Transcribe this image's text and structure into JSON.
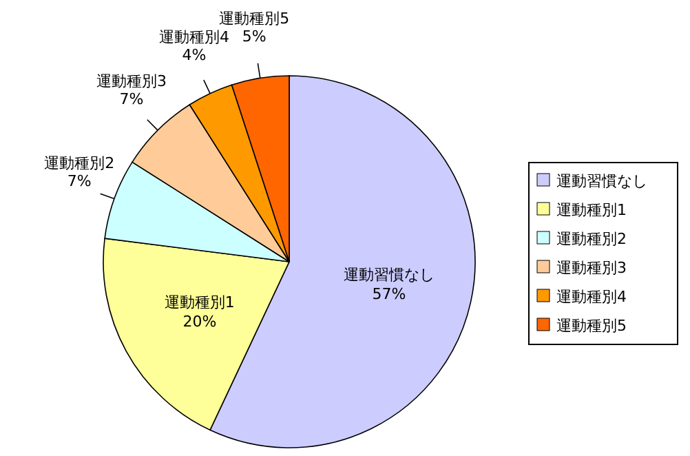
{
  "chart_data": {
    "type": "pie",
    "categories": [
      "運動習慣なし",
      "運動種別1",
      "運動種別2",
      "運動種別3",
      "運動種別4",
      "運動種別5"
    ],
    "values": [
      57,
      20,
      7,
      7,
      4,
      5
    ],
    "colors": [
      "#ccccff",
      "#ffff99",
      "#ccffff",
      "#ffcc99",
      "#ff9900",
      "#ff6600"
    ],
    "value_labels": [
      "57%",
      "20%",
      "7%",
      "7%",
      "4%",
      "5%"
    ],
    "legend": "right"
  }
}
